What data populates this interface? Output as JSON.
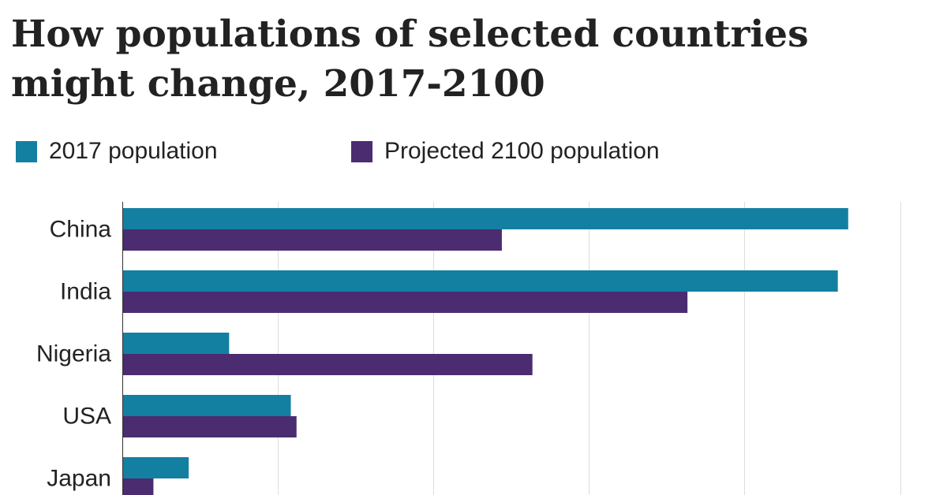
{
  "chart_data": {
    "type": "bar",
    "orientation": "horizontal",
    "title": "How populations of selected countries might change, 2017-2100",
    "categories": [
      "China",
      "India",
      "Nigeria",
      "USA",
      "Japan"
    ],
    "series": [
      {
        "name": "2017 population",
        "color": "#1380A1",
        "values": [
          1400,
          1380,
          206,
          325,
          128
        ]
      },
      {
        "name": "Projected 2100 population",
        "color": "#4B2C71",
        "values": [
          732,
          1090,
          791,
          336,
          60
        ]
      }
    ],
    "xlabel": "",
    "ylabel": "",
    "xlim": [
      0,
      1500
    ],
    "grid": true,
    "legend": "top-left"
  }
}
